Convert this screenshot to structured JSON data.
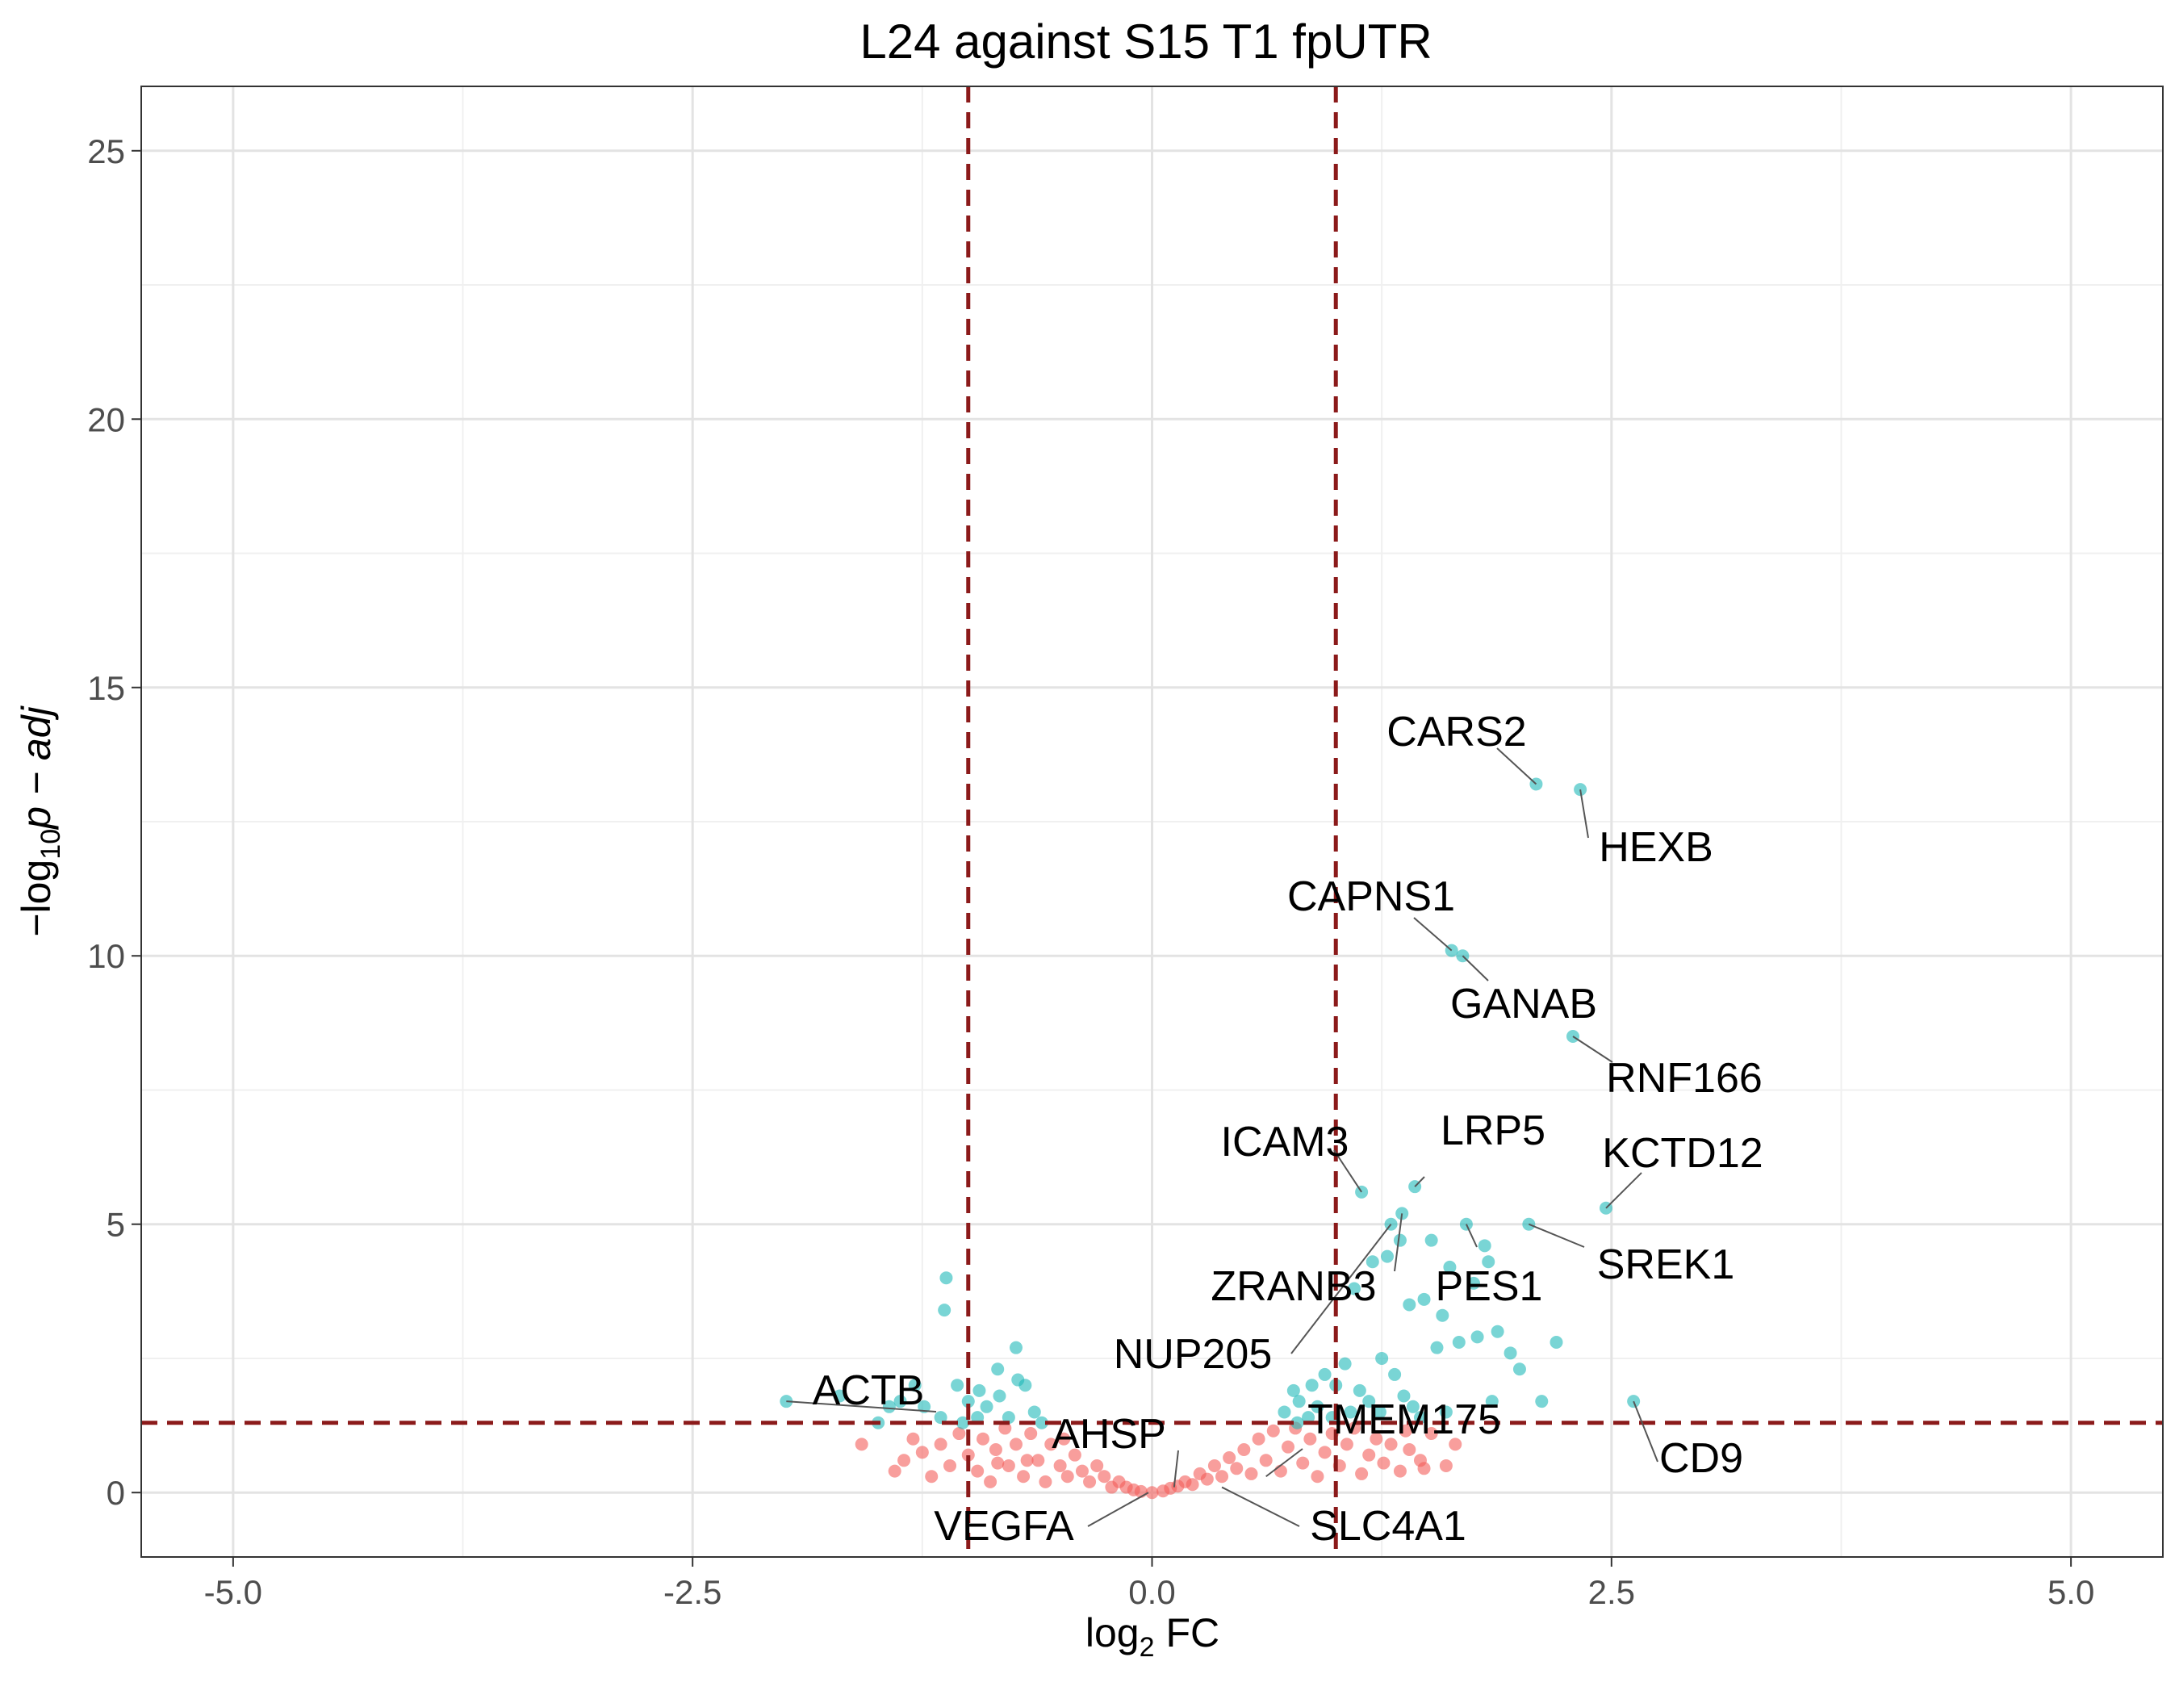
{
  "chart_data": {
    "type": "scatter",
    "title": "L24 against S15 T1 fpUTR",
    "xlabel": {
      "base": "log",
      "sub": "2",
      "rest": " FC"
    },
    "ylabel": {
      "prefix": "−log",
      "sub": "10",
      "rest": "p − adj"
    },
    "xlim": [
      -5.5,
      5.5
    ],
    "ylim": [
      -1.2,
      26.2
    ],
    "x_ticks": [
      -5.0,
      -2.5,
      0.0,
      2.5,
      5.0
    ],
    "x_tick_labels": [
      "-5.0",
      "-2.5",
      "0.0",
      "2.5",
      "5.0"
    ],
    "y_ticks": [
      0,
      5,
      10,
      15,
      20,
      25
    ],
    "y_tick_labels": [
      "0",
      "5",
      "10",
      "15",
      "20",
      "25"
    ],
    "grid": true,
    "thresholds": {
      "log2fc": [
        -1,
        1
      ],
      "neg_log10_padj": 1.3
    },
    "colors": {
      "significant": "#1fb9b9",
      "not_significant": "#f35e5a",
      "threshold": "#8b1a1a",
      "label_line": "#555555"
    },
    "series": [
      {
        "key": "significant",
        "points": [
          [
            2.09,
            13.2
          ],
          [
            2.33,
            13.1
          ],
          [
            1.63,
            10.1
          ],
          [
            1.69,
            10.0
          ],
          [
            2.29,
            8.5
          ],
          [
            1.14,
            5.6
          ],
          [
            1.43,
            5.7
          ],
          [
            2.47,
            5.3
          ],
          [
            1.3,
            5.0
          ],
          [
            1.36,
            5.2
          ],
          [
            1.71,
            5.0
          ],
          [
            2.05,
            5.0
          ],
          [
            1.52,
            4.7
          ],
          [
            1.81,
            4.6
          ],
          [
            1.83,
            4.3
          ],
          [
            1.2,
            4.3
          ],
          [
            1.28,
            4.4
          ],
          [
            1.35,
            4.7
          ],
          [
            1.62,
            4.2
          ],
          [
            1.75,
            3.9
          ],
          [
            1.1,
            3.8
          ],
          [
            1.4,
            3.5
          ],
          [
            1.48,
            3.6
          ],
          [
            1.58,
            3.3
          ],
          [
            1.88,
            3.0
          ],
          [
            1.95,
            2.6
          ],
          [
            2.0,
            2.3
          ],
          [
            2.2,
            2.8
          ],
          [
            1.67,
            2.8
          ],
          [
            1.77,
            2.9
          ],
          [
            1.55,
            2.7
          ],
          [
            1.25,
            2.5
          ],
          [
            1.05,
            2.4
          ],
          [
            0.94,
            2.2
          ],
          [
            0.87,
            2.0
          ],
          [
            0.8,
            1.7
          ],
          [
            0.77,
            1.9
          ],
          [
            0.9,
            1.6
          ],
          [
            1.0,
            2.0
          ],
          [
            1.13,
            1.9
          ],
          [
            1.18,
            1.7
          ],
          [
            1.32,
            2.2
          ],
          [
            1.37,
            1.8
          ],
          [
            1.42,
            1.6
          ],
          [
            1.6,
            1.5
          ],
          [
            1.85,
            1.7
          ],
          [
            2.12,
            1.7
          ],
          [
            2.62,
            1.7
          ],
          [
            0.98,
            1.4
          ],
          [
            0.85,
            1.4
          ],
          [
            0.72,
            1.5
          ],
          [
            0.79,
            1.3
          ],
          [
            1.08,
            1.5
          ],
          [
            1.24,
            1.5
          ],
          [
            1.46,
            1.4
          ],
          [
            -1.12,
            4.0
          ],
          [
            -1.13,
            3.4
          ],
          [
            -0.74,
            2.7
          ],
          [
            -0.73,
            2.1
          ],
          [
            -0.84,
            2.3
          ],
          [
            -0.64,
            1.5
          ],
          [
            -0.69,
            2.0
          ],
          [
            -0.83,
            1.8
          ],
          [
            -0.9,
            1.6
          ],
          [
            -0.94,
            1.9
          ],
          [
            -1.0,
            1.7
          ],
          [
            -1.06,
            2.0
          ],
          [
            -1.24,
            1.6
          ],
          [
            -1.37,
            1.7
          ],
          [
            -1.29,
            2.0
          ],
          [
            -1.43,
            1.6
          ],
          [
            -1.49,
            1.3
          ],
          [
            -1.99,
            1.7
          ],
          [
            -1.7,
            1.8
          ],
          [
            -0.78,
            1.4
          ],
          [
            -0.95,
            1.4
          ],
          [
            -1.03,
            1.3
          ],
          [
            -0.6,
            1.3
          ],
          [
            -1.15,
            1.4
          ]
        ]
      },
      {
        "key": "not_significant",
        "points": [
          [
            -1.58,
            0.9
          ],
          [
            -1.35,
            0.6
          ],
          [
            -1.4,
            0.4
          ],
          [
            -1.3,
            1.0
          ],
          [
            -1.2,
            0.3
          ],
          [
            -1.15,
            0.9
          ],
          [
            -1.1,
            0.5
          ],
          [
            -1.05,
            1.1
          ],
          [
            -1.0,
            0.7
          ],
          [
            -0.95,
            0.4
          ],
          [
            -0.92,
            1.0
          ],
          [
            -0.88,
            0.2
          ],
          [
            -0.85,
            0.8
          ],
          [
            -0.8,
            1.2
          ],
          [
            -0.78,
            0.5
          ],
          [
            -0.74,
            0.9
          ],
          [
            -0.7,
            0.3
          ],
          [
            -0.66,
            1.1
          ],
          [
            -0.62,
            0.6
          ],
          [
            -0.58,
            0.2
          ],
          [
            -0.55,
            0.9
          ],
          [
            -0.5,
            0.5
          ],
          [
            -0.46,
            0.3
          ],
          [
            -0.42,
            0.7
          ],
          [
            -0.38,
            0.4
          ],
          [
            -0.34,
            0.2
          ],
          [
            -0.3,
            0.5
          ],
          [
            -0.26,
            0.3
          ],
          [
            -0.22,
            0.1
          ],
          [
            -0.18,
            0.2
          ],
          [
            -0.14,
            0.1
          ],
          [
            -0.1,
            0.05
          ],
          [
            -0.06,
            0.02
          ],
          [
            0.0,
            0.0
          ],
          [
            0.06,
            0.03
          ],
          [
            0.1,
            0.08
          ],
          [
            0.14,
            0.12
          ],
          [
            0.18,
            0.2
          ],
          [
            0.22,
            0.15
          ],
          [
            0.26,
            0.35
          ],
          [
            0.3,
            0.25
          ],
          [
            0.34,
            0.5
          ],
          [
            0.38,
            0.3
          ],
          [
            0.42,
            0.65
          ],
          [
            0.46,
            0.45
          ],
          [
            0.5,
            0.8
          ],
          [
            0.54,
            0.35
          ],
          [
            0.58,
            1.0
          ],
          [
            0.62,
            0.6
          ],
          [
            0.66,
            1.15
          ],
          [
            0.7,
            0.4
          ],
          [
            0.74,
            0.85
          ],
          [
            0.78,
            1.2
          ],
          [
            0.82,
            0.55
          ],
          [
            0.86,
            1.0
          ],
          [
            0.9,
            0.3
          ],
          [
            0.94,
            0.75
          ],
          [
            0.98,
            1.1
          ],
          [
            1.02,
            0.5
          ],
          [
            1.06,
            0.9
          ],
          [
            1.1,
            1.2
          ],
          [
            1.14,
            0.35
          ],
          [
            1.18,
            0.7
          ],
          [
            1.22,
            1.0
          ],
          [
            1.26,
            0.55
          ],
          [
            1.3,
            0.9
          ],
          [
            1.35,
            0.4
          ],
          [
            1.4,
            0.8
          ],
          [
            1.46,
            0.6
          ],
          [
            1.52,
            1.1
          ],
          [
            1.6,
            0.5
          ],
          [
            1.65,
            0.9
          ],
          [
            1.48,
            0.45
          ],
          [
            1.38,
            1.15
          ],
          [
            -0.68,
            0.6
          ],
          [
            -0.48,
            1.0
          ],
          [
            -0.84,
            0.55
          ],
          [
            -1.25,
            0.75
          ]
        ]
      }
    ],
    "labels": [
      {
        "gene": "CARS2",
        "x": 2.09,
        "y": 13.2
      },
      {
        "gene": "HEXB",
        "x": 2.33,
        "y": 13.1
      },
      {
        "gene": "CAPNS1",
        "x": 1.63,
        "y": 10.1
      },
      {
        "gene": "GANAB",
        "x": 1.69,
        "y": 10.0
      },
      {
        "gene": "RNF166",
        "x": 2.29,
        "y": 8.5
      },
      {
        "gene": "ICAM3",
        "x": 1.14,
        "y": 5.6
      },
      {
        "gene": "LRP5",
        "x": 1.43,
        "y": 5.7
      },
      {
        "gene": "KCTD12",
        "x": 2.47,
        "y": 5.3
      },
      {
        "gene": "SREK1",
        "x": 2.05,
        "y": 5.0
      },
      {
        "gene": "ZRANB3",
        "x": 1.36,
        "y": 5.2
      },
      {
        "gene": "PES1",
        "x": 1.71,
        "y": 5.0
      },
      {
        "gene": "NUP205",
        "x": 1.3,
        "y": 5.0
      },
      {
        "gene": "ACTB",
        "x": -1.99,
        "y": 1.7
      },
      {
        "gene": "CD9",
        "x": 2.62,
        "y": 1.7
      },
      {
        "gene": "AHSP",
        "x": 0.12,
        "y": 0.1
      },
      {
        "gene": "TMEM175",
        "x": 0.62,
        "y": 0.3
      },
      {
        "gene": "VEGFA",
        "x": -0.02,
        "y": 0.0
      },
      {
        "gene": "SLC4A1",
        "x": 0.38,
        "y": 0.1
      }
    ]
  }
}
